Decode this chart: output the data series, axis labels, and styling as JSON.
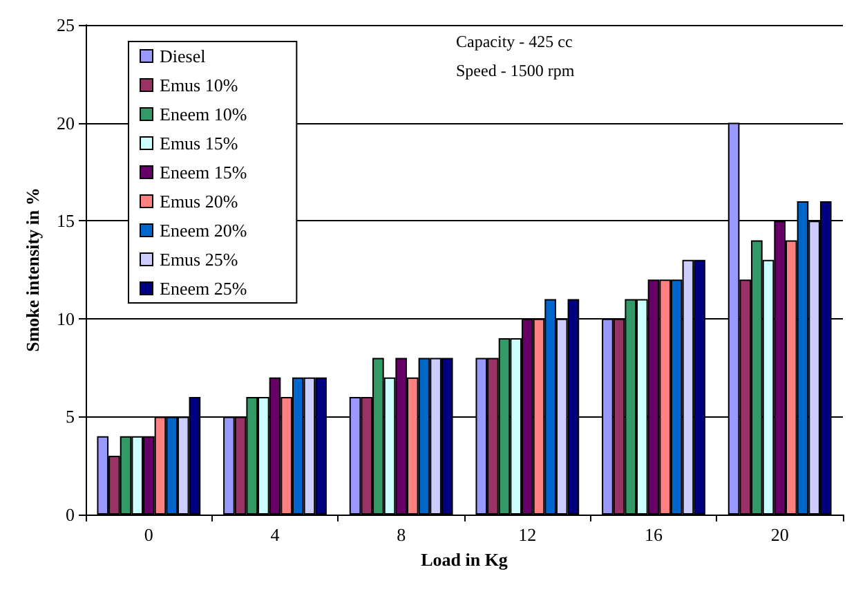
{
  "chart_data": {
    "type": "bar",
    "xlabel": "Load in Kg",
    "ylabel": "Smoke intensity in %",
    "categories": [
      "0",
      "4",
      "8",
      "12",
      "16",
      "20"
    ],
    "series": [
      {
        "name": "Diesel",
        "color": "#9999ff",
        "values": [
          4,
          5,
          6,
          8,
          10,
          20
        ]
      },
      {
        "name": "Emus 10%",
        "color": "#993366",
        "values": [
          3,
          5,
          6,
          8,
          10,
          12
        ]
      },
      {
        "name": "Eneem 10%",
        "color": "#339966",
        "values": [
          4,
          6,
          8,
          9,
          11,
          14
        ]
      },
      {
        "name": "Emus 15%",
        "color": "#ccffff",
        "values": [
          4,
          6,
          7,
          9,
          11,
          13
        ]
      },
      {
        "name": "Eneem 15%",
        "color": "#660066",
        "values": [
          4,
          7,
          8,
          10,
          12,
          15
        ]
      },
      {
        "name": "Emus 20%",
        "color": "#ff8080",
        "values": [
          5,
          6,
          7,
          10,
          12,
          14
        ]
      },
      {
        "name": "Eneem 20%",
        "color": "#0066cc",
        "values": [
          5,
          7,
          8,
          11,
          12,
          16
        ]
      },
      {
        "name": "Emus 25%",
        "color": "#ccccff",
        "values": [
          5,
          7,
          8,
          10,
          13,
          15
        ]
      },
      {
        "name": "Eneem 25%",
        "color": "#000080",
        "values": [
          6,
          7,
          8,
          11,
          13,
          16
        ]
      }
    ],
    "ylim": [
      0,
      25
    ],
    "yticks": [
      0,
      5,
      10,
      15,
      20,
      25
    ],
    "grid": "y",
    "legend": "top left",
    "annotations": [
      "Capacity - 425 cc",
      "Speed - 1500 rpm"
    ]
  }
}
